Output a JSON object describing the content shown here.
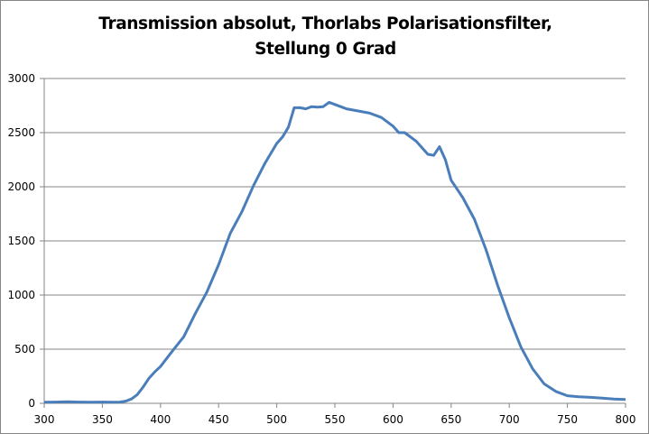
{
  "chart_data": {
    "type": "line",
    "title": [
      "Transmission absolut, Thorlabs Polarisationsfilter,",
      "Stellung 0 Grad"
    ],
    "xlabel": "",
    "ylabel": "",
    "xlim": [
      300,
      800
    ],
    "ylim": [
      0,
      3000
    ],
    "xticks": [
      300,
      350,
      400,
      450,
      500,
      550,
      600,
      650,
      700,
      750,
      800
    ],
    "yticks": [
      0,
      500,
      1000,
      1500,
      2000,
      2500,
      3000
    ],
    "grid": "horizontal",
    "legend": "none",
    "color": "#4a7ebb",
    "series": [
      {
        "x": [
          300,
          310,
          320,
          330,
          340,
          350,
          360,
          365,
          370,
          375,
          380,
          385,
          390,
          395,
          400,
          410,
          420,
          430,
          440,
          450,
          460,
          470,
          480,
          490,
          500,
          505,
          510,
          515,
          520,
          525,
          530,
          535,
          540,
          545,
          550,
          555,
          560,
          570,
          580,
          590,
          600,
          605,
          610,
          620,
          630,
          635,
          640,
          645,
          650,
          660,
          670,
          680,
          690,
          700,
          710,
          720,
          730,
          740,
          750,
          760,
          770,
          780,
          790,
          800
        ],
        "y": [
          10,
          12,
          15,
          12,
          10,
          12,
          10,
          12,
          20,
          40,
          80,
          150,
          230,
          290,
          340,
          480,
          615,
          830,
          1030,
          1280,
          1570,
          1770,
          2010,
          2220,
          2400,
          2460,
          2550,
          2730,
          2730,
          2720,
          2740,
          2735,
          2740,
          2780,
          2760,
          2740,
          2720,
          2700,
          2680,
          2640,
          2560,
          2500,
          2500,
          2420,
          2300,
          2290,
          2370,
          2250,
          2060,
          1900,
          1700,
          1420,
          1090,
          790,
          520,
          320,
          180,
          110,
          70,
          60,
          55,
          48,
          40,
          35
        ]
      }
    ]
  }
}
